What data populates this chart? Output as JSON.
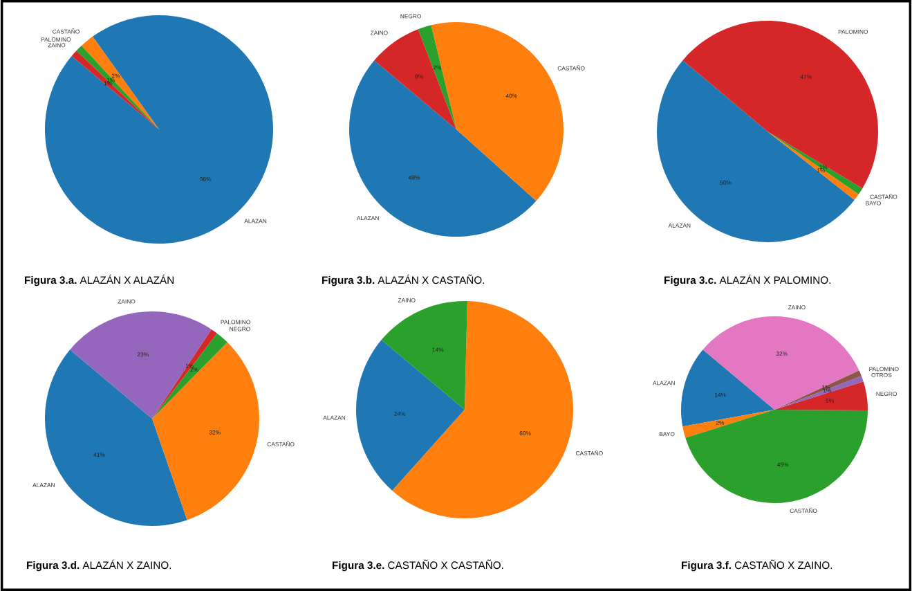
{
  "chart_data": [
    {
      "type": "pie",
      "title": "Figura 3.a.",
      "subtitle": "ALAZÁN X ALAZÁN",
      "categories": [
        "ALAZAN",
        "CASTAÑO",
        "PALOMINO",
        "ZAINO"
      ],
      "values": [
        96,
        2,
        1,
        1
      ],
      "colors": [
        "#1f77b4",
        "#ff7f0e",
        "#2ca02c",
        "#d62728"
      ],
      "value_labels": [
        "96%",
        "2%",
        "1%",
        "1%"
      ]
    },
    {
      "type": "pie",
      "title": "Figura 3.b.",
      "subtitle": "ALAZÁN X CASTAÑO.",
      "categories": [
        "ALAZAN",
        "CASTAÑO",
        "NEGRO",
        "ZAINO"
      ],
      "values": [
        49,
        40,
        2,
        8
      ],
      "colors": [
        "#1f77b4",
        "#ff7f0e",
        "#2ca02c",
        "#d62728"
      ],
      "value_labels": [
        "49%",
        "40%",
        "2%",
        "8%"
      ]
    },
    {
      "type": "pie",
      "title": "Figura 3.c.",
      "subtitle": "ALAZÁN X PALOMINO.",
      "categories": [
        "ALAZAN",
        "BAYO",
        "CASTAÑO",
        "PALOMINO"
      ],
      "values": [
        50,
        1,
        1,
        47
      ],
      "colors": [
        "#1f77b4",
        "#ff7f0e",
        "#2ca02c",
        "#d62728"
      ],
      "value_labels": [
        "50%",
        "1%",
        "1%",
        "47%"
      ]
    },
    {
      "type": "pie",
      "title": "Figura 3.d.",
      "subtitle": "ALAZÁN X ZAINO.",
      "categories": [
        "ALAZAN",
        "CASTAÑO",
        "NEGRO",
        "PALOMINO",
        "ZAINO"
      ],
      "values": [
        41,
        32,
        2,
        1,
        23
      ],
      "colors": [
        "#1f77b4",
        "#ff7f0e",
        "#2ca02c",
        "#d62728",
        "#9467bd"
      ],
      "value_labels": [
        "41%",
        "32%",
        "2%",
        "1%",
        "23%"
      ]
    },
    {
      "type": "pie",
      "title": "Figura 3.e.",
      "subtitle": "CASTAÑO X CASTAÑO.",
      "categories": [
        "ALAZAN",
        "CASTAÑO",
        "ZAINO"
      ],
      "values": [
        24,
        60,
        14
      ],
      "colors": [
        "#1f77b4",
        "#ff7f0e",
        "#2ca02c"
      ],
      "value_labels": [
        "24%",
        "60%",
        "14%"
      ]
    },
    {
      "type": "pie",
      "title": "Figura 3.f.",
      "subtitle": "CASTAÑO X ZAINO.",
      "categories": [
        "ALAZAN",
        "BAYO",
        "CASTAÑO",
        "NEGRO",
        "OTROS",
        "PALOMINO",
        "ZAINO"
      ],
      "values": [
        14,
        2,
        45,
        5,
        1,
        1,
        32
      ],
      "colors": [
        "#1f77b4",
        "#ff7f0e",
        "#2ca02c",
        "#d62728",
        "#9467bd",
        "#8c564b",
        "#e377c2"
      ],
      "value_labels": [
        "14%",
        "2%",
        "45%",
        "5%",
        "1%",
        "1%",
        "32%"
      ]
    }
  ]
}
